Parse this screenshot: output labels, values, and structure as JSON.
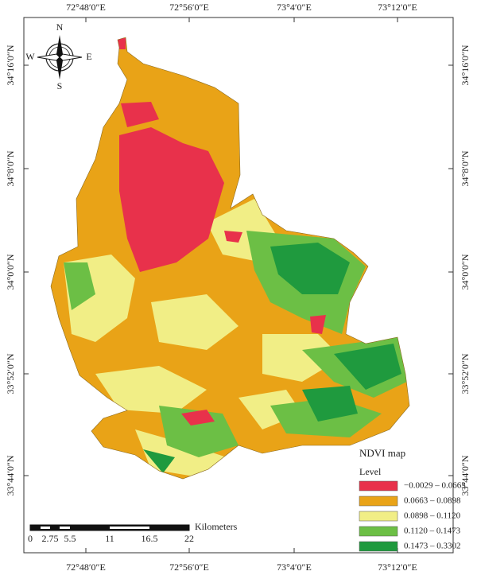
{
  "map": {
    "longitudes": [
      "72°48′0″E",
      "72°56′0″E",
      "73°4′0″E",
      "73°12′0″E"
    ],
    "latitudes": [
      "34°16′0″N",
      "34°8′0″N",
      "34°0′0″N",
      "33°52′0″N",
      "33°44′0″N"
    ],
    "compass": {
      "north": "N",
      "south": "S",
      "east": "E",
      "west": "W"
    },
    "legend": {
      "title": "NDVI map",
      "heading": "Level",
      "classes": [
        {
          "label": "−0.0029 – 0.0663",
          "color": "#e8314b"
        },
        {
          "label": "0.0663 – 0.0898",
          "color": "#e9a317"
        },
        {
          "label": "0.0898 – 0.1120",
          "color": "#f1ee86"
        },
        {
          "label": "0.1120 – 0.1473",
          "color": "#6cbf45"
        },
        {
          "label": "0.1473 – 0.3302",
          "color": "#1f9a3e"
        }
      ]
    },
    "scale_bar": {
      "unit": "Kilometers",
      "ticks": [
        "0",
        "2.75",
        "5.5",
        "11",
        "16.5",
        "22"
      ]
    }
  }
}
